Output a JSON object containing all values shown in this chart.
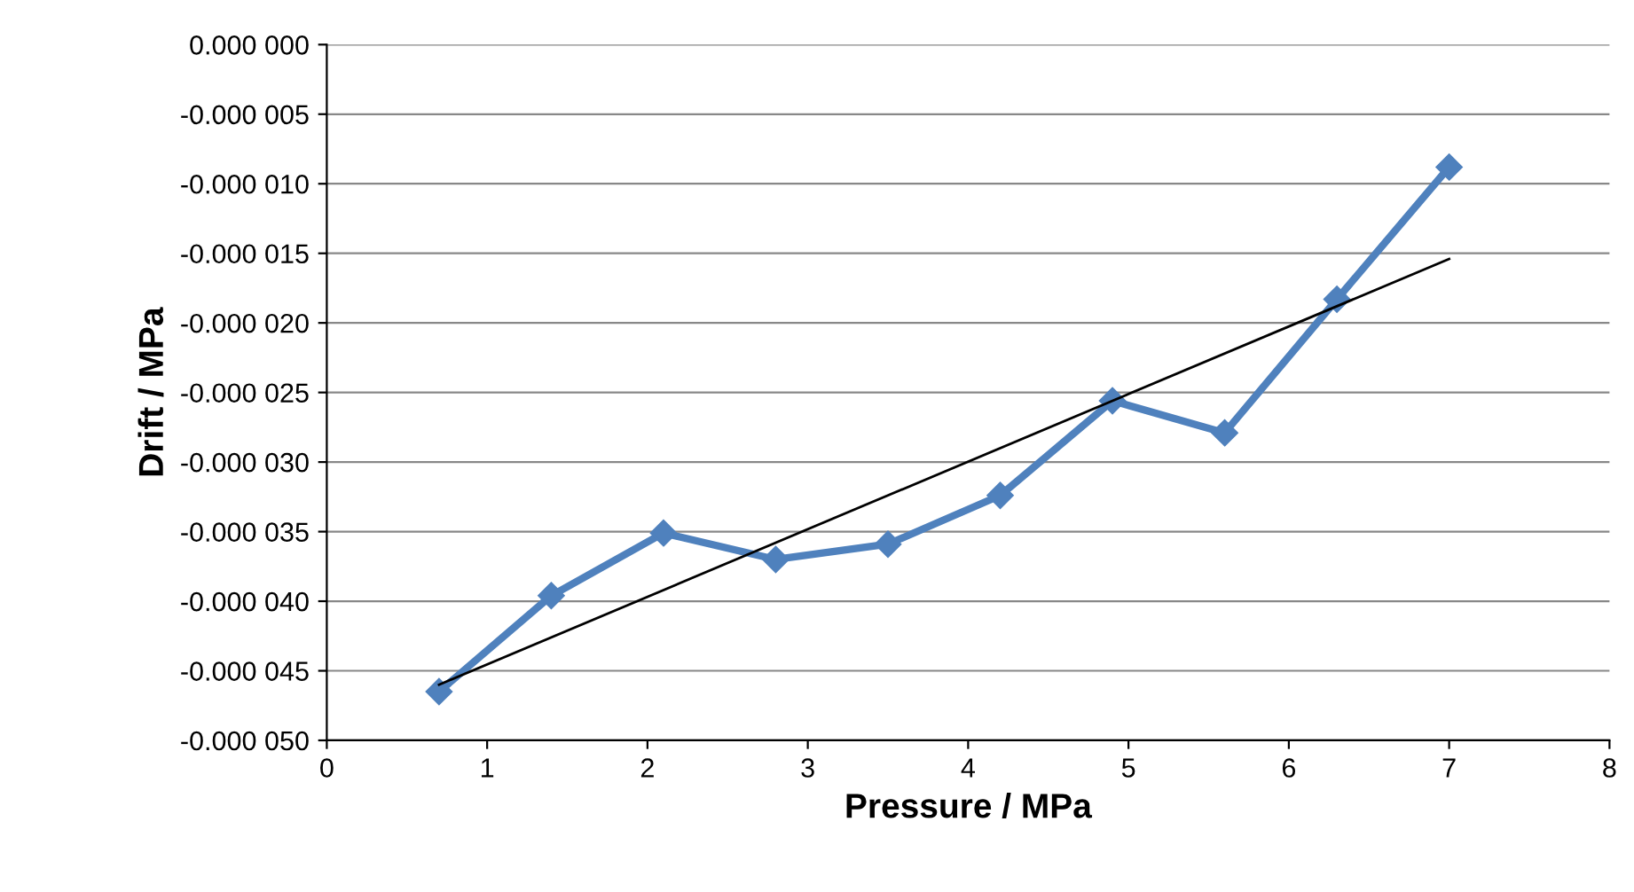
{
  "chart_data": {
    "type": "line",
    "xlabel": "Pressure / MPa",
    "ylabel": "Drift / MPa",
    "xlim": [
      0,
      8
    ],
    "xticks": [
      0,
      1,
      2,
      3,
      4,
      5,
      6,
      7,
      8
    ],
    "ylim": [
      -5e-05,
      0
    ],
    "yticks": [
      {
        "value": 0,
        "label": "0.000 000"
      },
      {
        "value": -5e-06,
        "label": "-0.000 005"
      },
      {
        "value": -1e-05,
        "label": "-0.000 010"
      },
      {
        "value": -1.5e-05,
        "label": "-0.000 015"
      },
      {
        "value": -2e-05,
        "label": "-0.000 020"
      },
      {
        "value": -2.5e-05,
        "label": "-0.000 025"
      },
      {
        "value": -3e-05,
        "label": "-0.000 030"
      },
      {
        "value": -3.5e-05,
        "label": "-0.000 035"
      },
      {
        "value": -4e-05,
        "label": "-0.000 040"
      },
      {
        "value": -4.5e-05,
        "label": "-0.000 045"
      },
      {
        "value": -5e-05,
        "label": "-0.000 050"
      }
    ],
    "grid": "y",
    "legend": false,
    "series": [
      {
        "color": "#4f81bd",
        "marker": "diamond",
        "line_style": "solid",
        "x": [
          0.7,
          1.4,
          2.1,
          2.8,
          3.5,
          4.2,
          4.9,
          5.6,
          6.3,
          7.0
        ],
        "values": [
          -4.65e-05,
          -3.96e-05,
          -3.51e-05,
          -3.7e-05,
          -3.59e-05,
          -3.24e-05,
          -2.56e-05,
          -2.79e-05,
          -1.83e-05,
          -8.8e-06
        ]
      },
      {
        "color": "#000000",
        "marker": "none",
        "line_style": "solid",
        "x": [
          0.7,
          7.0
        ],
        "values": [
          -4.6e-05,
          -1.54e-05
        ]
      }
    ]
  }
}
